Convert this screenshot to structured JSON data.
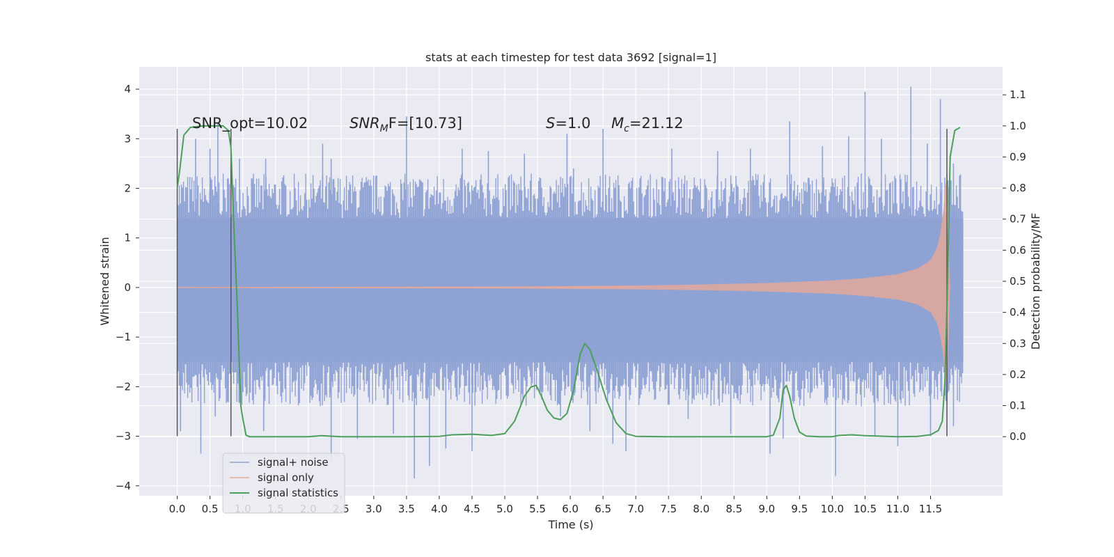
{
  "chart_data": {
    "type": "line",
    "title": "stats at each timestep for test data 3692 [signal=1]",
    "xlabel": "Time (s)",
    "ylabel_left": "Whitened strain",
    "ylabel_right": "Detection probability/MF",
    "xlim": [
      -0.58,
      12.6
    ],
    "ylim_left": [
      -4.2,
      4.45
    ],
    "ylim_right": [
      -0.19,
      1.19
    ],
    "x_ticks": [
      0.0,
      0.5,
      1.0,
      1.5,
      2.0,
      2.5,
      3.0,
      3.5,
      4.0,
      4.5,
      5.0,
      5.5,
      6.0,
      6.5,
      7.0,
      7.5,
      8.0,
      8.5,
      9.0,
      9.5,
      10.0,
      10.5,
      11.0,
      11.5
    ],
    "x_tick_labels": [
      "0.0",
      "0.5",
      "1.0",
      "1.5",
      "2.0",
      "2.5",
      "3.0",
      "3.5",
      "4.0",
      "4.5",
      "5.0",
      "5.5",
      "6.0",
      "6.5",
      "7.0",
      "7.5",
      "8.0",
      "8.5",
      "9.0",
      "9.5",
      "10.0",
      "10.5",
      "11.0",
      "11.5"
    ],
    "y_left_ticks": [
      -4,
      -3,
      -2,
      -1,
      0,
      1,
      2,
      3,
      4
    ],
    "y_left_tick_labels": [
      "−4",
      "−3",
      "−2",
      "−1",
      "0",
      "1",
      "2",
      "3",
      "4"
    ],
    "y_right_ticks": [
      0.0,
      0.1,
      0.2,
      0.3,
      0.4,
      0.5,
      0.6,
      0.7,
      0.8,
      0.9,
      1.0,
      1.1
    ],
    "y_right_tick_labels": [
      "0.0",
      "0.1",
      "0.2",
      "0.3",
      "0.4",
      "0.5",
      "0.6",
      "0.7",
      "0.8",
      "0.9",
      "1.0",
      "1.1"
    ],
    "grid": true,
    "legend_position": "lower-left",
    "annotations": {
      "snr_opt": "SNR_opt=10.02",
      "snr_mf_main": "SNR",
      "snr_mf_sub": "M",
      "snr_mf_rest": "F=[10.73]",
      "s_main": "S",
      "s_rest": "=1.0",
      "mc_main": "M",
      "mc_sub": "c",
      "mc_rest": "=21.12"
    },
    "vertical_markers": [
      {
        "x": 0.0,
        "y_range": [
          -3.0,
          3.2
        ]
      },
      {
        "x": 0.82,
        "y_range": [
          -3.0,
          3.2
        ]
      },
      {
        "x": 11.75,
        "y_range": [
          -3.0,
          3.2
        ]
      }
    ],
    "series": [
      {
        "name": "signal+ noise",
        "color": "#8fa2d4",
        "x_range": [
          0.0,
          12.0
        ],
        "band_lower": -1.5,
        "band_upper": 1.4,
        "spikes": [
          {
            "x": 0.28,
            "y": 3.0
          },
          {
            "x": 0.5,
            "y": 2.8
          },
          {
            "x": 0.62,
            "y": 3.3
          },
          {
            "x": 0.95,
            "y": 2.6
          },
          {
            "x": 1.35,
            "y": 2.6
          },
          {
            "x": 2.22,
            "y": 2.9
          },
          {
            "x": 2.35,
            "y": 2.6
          },
          {
            "x": 3.5,
            "y": 3.45
          },
          {
            "x": 4.35,
            "y": 2.8
          },
          {
            "x": 4.75,
            "y": 2.75
          },
          {
            "x": 5.3,
            "y": 2.7
          },
          {
            "x": 5.95,
            "y": 3.1
          },
          {
            "x": 6.05,
            "y": 2.4
          },
          {
            "x": 6.5,
            "y": 3.2
          },
          {
            "x": 7.55,
            "y": 2.8
          },
          {
            "x": 8.25,
            "y": 2.75
          },
          {
            "x": 8.75,
            "y": 2.8
          },
          {
            "x": 9.35,
            "y": 3.35
          },
          {
            "x": 9.85,
            "y": 2.85
          },
          {
            "x": 10.25,
            "y": 3.05
          },
          {
            "x": 10.5,
            "y": 3.95
          },
          {
            "x": 10.75,
            "y": 3.0
          },
          {
            "x": 11.2,
            "y": 4.05
          },
          {
            "x": 11.45,
            "y": 2.9
          },
          {
            "x": 11.65,
            "y": 3.8
          },
          {
            "x": 11.85,
            "y": 2.5
          },
          {
            "x": 0.05,
            "y": -2.9
          },
          {
            "x": 0.36,
            "y": -3.35
          },
          {
            "x": 0.58,
            "y": -2.6
          },
          {
            "x": 1.32,
            "y": -2.9
          },
          {
            "x": 2.35,
            "y": -3.5
          },
          {
            "x": 2.75,
            "y": -3.05
          },
          {
            "x": 3.3,
            "y": -2.95
          },
          {
            "x": 3.62,
            "y": -3.85
          },
          {
            "x": 3.85,
            "y": -3.6
          },
          {
            "x": 4.1,
            "y": -3.25
          },
          {
            "x": 4.5,
            "y": -3.3
          },
          {
            "x": 5.85,
            "y": -2.6
          },
          {
            "x": 6.3,
            "y": -2.9
          },
          {
            "x": 6.65,
            "y": -3.15
          },
          {
            "x": 6.85,
            "y": -3.3
          },
          {
            "x": 7.8,
            "y": -2.65
          },
          {
            "x": 8.45,
            "y": -2.95
          },
          {
            "x": 9.05,
            "y": -3.35
          },
          {
            "x": 9.25,
            "y": -3.05
          },
          {
            "x": 10.05,
            "y": -3.8
          },
          {
            "x": 10.65,
            "y": -3.0
          },
          {
            "x": 11.0,
            "y": -3.2
          },
          {
            "x": 11.5,
            "y": -3.0
          },
          {
            "x": 11.85,
            "y": -2.8
          }
        ]
      },
      {
        "name": "signal only",
        "color": "#e4a99a",
        "x": [
          0.0,
          5.0,
          7.0,
          8.0,
          9.0,
          10.0,
          10.5,
          11.0,
          11.3,
          11.5,
          11.6,
          11.65,
          11.7,
          11.72,
          11.75,
          11.78,
          11.8
        ],
        "envelope": [
          0.01,
          0.02,
          0.04,
          0.06,
          0.09,
          0.14,
          0.19,
          0.27,
          0.38,
          0.55,
          0.8,
          1.1,
          1.6,
          2.0,
          2.2,
          1.0,
          0.0
        ]
      },
      {
        "name": "signal statistics",
        "color": "#4c9e5a",
        "x": [
          0.0,
          0.04,
          0.1,
          0.2,
          0.4,
          0.6,
          0.7,
          0.78,
          0.82,
          0.86,
          0.92,
          0.97,
          1.0,
          1.05,
          1.1,
          1.5,
          2.0,
          2.2,
          2.5,
          3.0,
          3.5,
          4.0,
          4.2,
          4.5,
          4.8,
          5.0,
          5.15,
          5.3,
          5.4,
          5.48,
          5.55,
          5.65,
          5.75,
          5.85,
          5.95,
          6.05,
          6.15,
          6.22,
          6.3,
          6.4,
          6.55,
          6.7,
          6.85,
          7.0,
          7.5,
          8.0,
          8.5,
          9.0,
          9.1,
          9.2,
          9.25,
          9.3,
          9.35,
          9.42,
          9.5,
          9.6,
          9.8,
          10.0,
          10.1,
          10.3,
          10.5,
          11.0,
          11.3,
          11.5,
          11.62,
          11.68,
          11.72,
          11.76,
          11.8,
          11.87,
          11.95
        ],
        "y": [
          0.8,
          0.86,
          0.97,
          0.995,
          1.0,
          1.0,
          1.0,
          0.985,
          0.93,
          0.7,
          0.4,
          0.1,
          0.06,
          0.005,
          0.0,
          0.0,
          0.0,
          0.003,
          0.0,
          0.0,
          0.0,
          0.001,
          0.006,
          0.008,
          0.004,
          0.01,
          0.05,
          0.13,
          0.16,
          0.165,
          0.135,
          0.085,
          0.06,
          0.055,
          0.075,
          0.15,
          0.265,
          0.3,
          0.28,
          0.22,
          0.12,
          0.045,
          0.01,
          0.001,
          0.0,
          0.0,
          0.0,
          0.0,
          0.005,
          0.06,
          0.15,
          0.165,
          0.13,
          0.06,
          0.015,
          0.002,
          0.0,
          0.0,
          0.004,
          0.006,
          0.003,
          0.0,
          0.001,
          0.006,
          0.02,
          0.05,
          0.18,
          0.5,
          0.9,
          0.985,
          0.995
        ]
      }
    ]
  }
}
